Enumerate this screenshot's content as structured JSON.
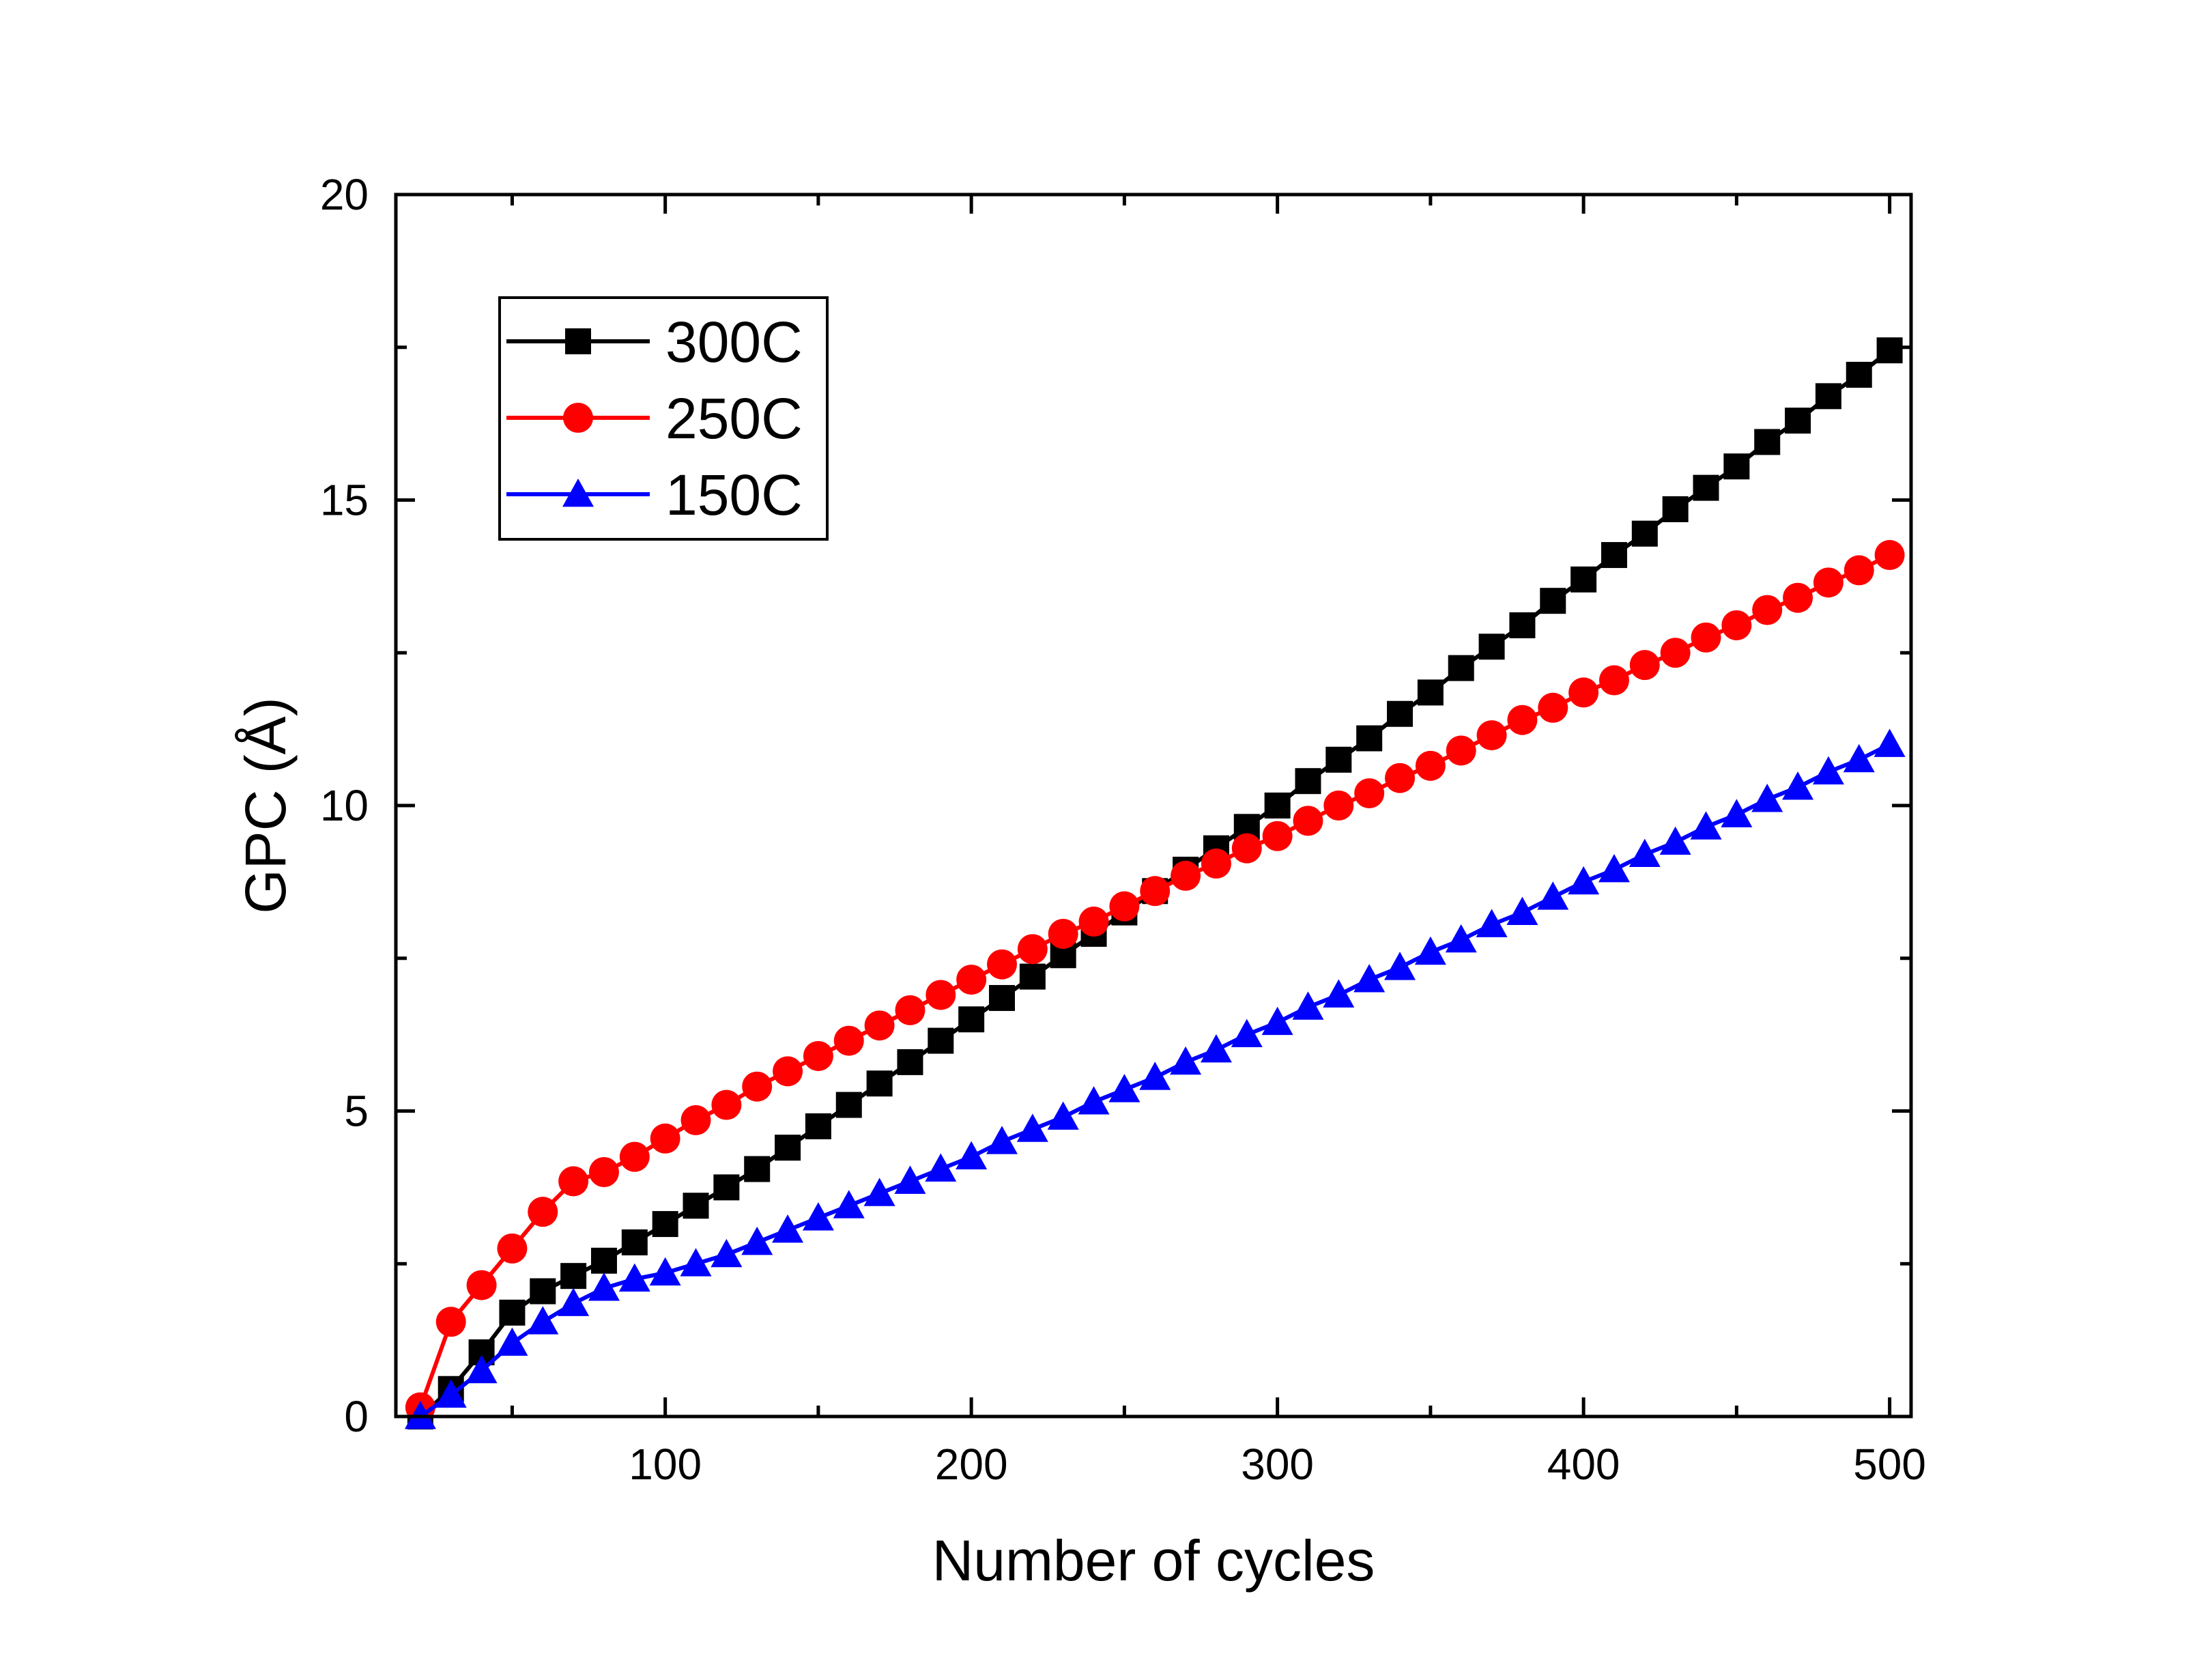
{
  "chart_data": {
    "type": "line",
    "title": "",
    "xlabel": "Number of cycles",
    "ylabel": "GPC (Å)",
    "xlim": [
      12,
      507
    ],
    "ylim": [
      0,
      20
    ],
    "xticks": [
      100,
      200,
      300,
      400,
      500
    ],
    "yticks": [
      0,
      5,
      10,
      15,
      20
    ],
    "legend_position": "top-left",
    "grid": false,
    "series": [
      {
        "name": "300C",
        "color": "#000000",
        "marker": "square",
        "x": [
          20,
          30,
          40,
          50,
          60,
          70,
          80,
          90,
          100,
          110,
          120,
          130,
          140,
          150,
          160,
          170,
          180,
          190,
          200,
          210,
          220,
          230,
          240,
          250,
          260,
          270,
          280,
          290,
          300,
          310,
          320,
          330,
          340,
          350,
          360,
          370,
          380,
          390,
          400,
          410,
          420,
          430,
          440,
          450,
          460,
          470,
          480,
          490,
          500
        ],
        "y": [
          0.0,
          0.45,
          1.05,
          1.7,
          2.05,
          2.3,
          2.55,
          2.85,
          3.15,
          3.45,
          3.75,
          4.05,
          4.4,
          4.75,
          5.1,
          5.45,
          5.8,
          6.15,
          6.5,
          6.85,
          7.2,
          7.55,
          7.9,
          8.25,
          8.6,
          8.95,
          9.3,
          9.65,
          10.0,
          10.4,
          10.75,
          11.1,
          11.5,
          11.85,
          12.25,
          12.6,
          12.95,
          13.35,
          13.7,
          14.1,
          14.45,
          14.85,
          15.2,
          15.55,
          15.95,
          16.3,
          16.7,
          17.05,
          17.45
        ]
      },
      {
        "name": "250C",
        "color": "#ff0000",
        "marker": "circle",
        "x": [
          20,
          30,
          40,
          50,
          60,
          70,
          80,
          90,
          100,
          110,
          120,
          130,
          140,
          150,
          160,
          170,
          180,
          190,
          200,
          210,
          220,
          230,
          240,
          250,
          260,
          270,
          280,
          290,
          300,
          310,
          320,
          330,
          340,
          350,
          360,
          370,
          380,
          390,
          400,
          410,
          420,
          430,
          440,
          450,
          460,
          470,
          480,
          490,
          500
        ],
        "y": [
          0.15,
          1.55,
          2.15,
          2.75,
          3.35,
          3.85,
          4.0,
          4.25,
          4.55,
          4.85,
          5.1,
          5.4,
          5.65,
          5.9,
          6.15,
          6.4,
          6.65,
          6.9,
          7.15,
          7.4,
          7.65,
          7.9,
          8.1,
          8.35,
          8.6,
          8.85,
          9.05,
          9.3,
          9.5,
          9.75,
          10.0,
          10.2,
          10.45,
          10.65,
          10.9,
          11.15,
          11.4,
          11.6,
          11.85,
          12.05,
          12.3,
          12.5,
          12.75,
          12.95,
          13.2,
          13.4,
          13.65,
          13.85,
          14.1
        ]
      },
      {
        "name": "150C",
        "color": "#0000ff",
        "marker": "triangle",
        "x": [
          20,
          30,
          40,
          50,
          60,
          70,
          80,
          90,
          100,
          110,
          120,
          130,
          140,
          150,
          160,
          170,
          180,
          190,
          200,
          210,
          220,
          230,
          240,
          250,
          260,
          270,
          280,
          290,
          300,
          310,
          320,
          330,
          340,
          350,
          360,
          370,
          380,
          390,
          400,
          410,
          420,
          430,
          440,
          450,
          460,
          470,
          480,
          490,
          500
        ],
        "y": [
          0.0,
          0.35,
          0.75,
          1.2,
          1.55,
          1.85,
          2.1,
          2.25,
          2.35,
          2.5,
          2.65,
          2.85,
          3.05,
          3.25,
          3.45,
          3.65,
          3.85,
          4.05,
          4.25,
          4.5,
          4.7,
          4.9,
          5.15,
          5.35,
          5.55,
          5.8,
          6.0,
          6.25,
          6.45,
          6.7,
          6.9,
          7.15,
          7.35,
          7.6,
          7.8,
          8.05,
          8.25,
          8.5,
          8.75,
          8.95,
          9.2,
          9.4,
          9.65,
          9.85,
          10.1,
          10.3,
          10.55,
          10.75,
          11.0
        ]
      }
    ]
  }
}
